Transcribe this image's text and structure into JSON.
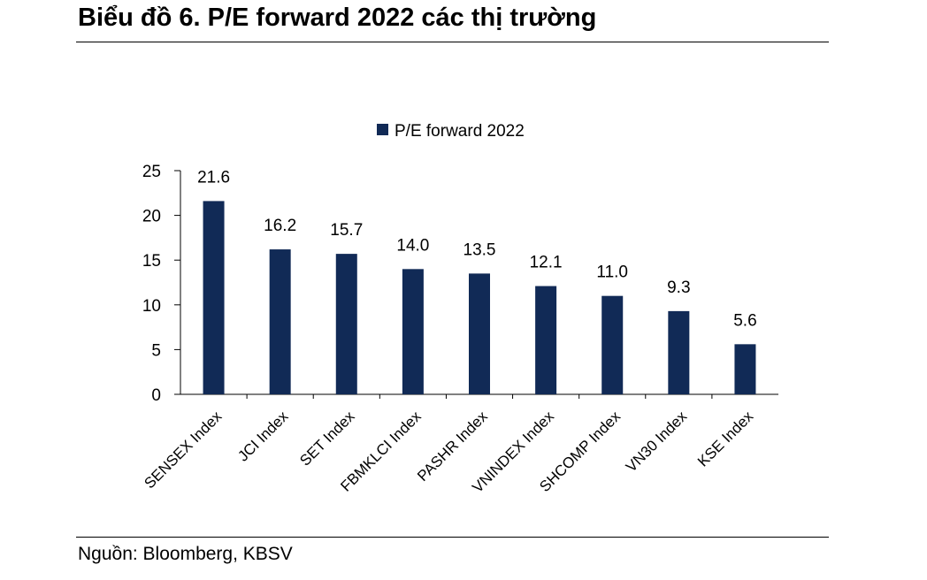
{
  "title": "Biểu đồ 6. P/E forward 2022 các thị trường",
  "source": "Nguồn: Bloomberg, KBSV",
  "chart_data": {
    "type": "bar",
    "title": "",
    "xlabel": "",
    "ylabel": "",
    "categories": [
      "SENSEX Index",
      "JCI Index",
      "SET Index",
      "FBMKLCI Index",
      "PASHR Index",
      "VNINDEX Index",
      "SHCOMP Index",
      "VN30 Index",
      "KSE Index"
    ],
    "series": [
      {
        "name": "P/E forward 2022",
        "values": [
          21.6,
          16.2,
          15.7,
          14.0,
          13.5,
          12.1,
          11.0,
          9.3,
          5.6
        ],
        "color": "#112a56"
      }
    ],
    "data_labels": [
      "21.6",
      "16.2",
      "15.7",
      "14.0",
      "13.5",
      "12.1",
      "11.0",
      "9.3",
      "5.6"
    ],
    "ylim": [
      0,
      25
    ],
    "yticks": [
      0,
      5,
      10,
      15,
      20,
      25
    ],
    "grid": false,
    "legend_position": "top"
  }
}
